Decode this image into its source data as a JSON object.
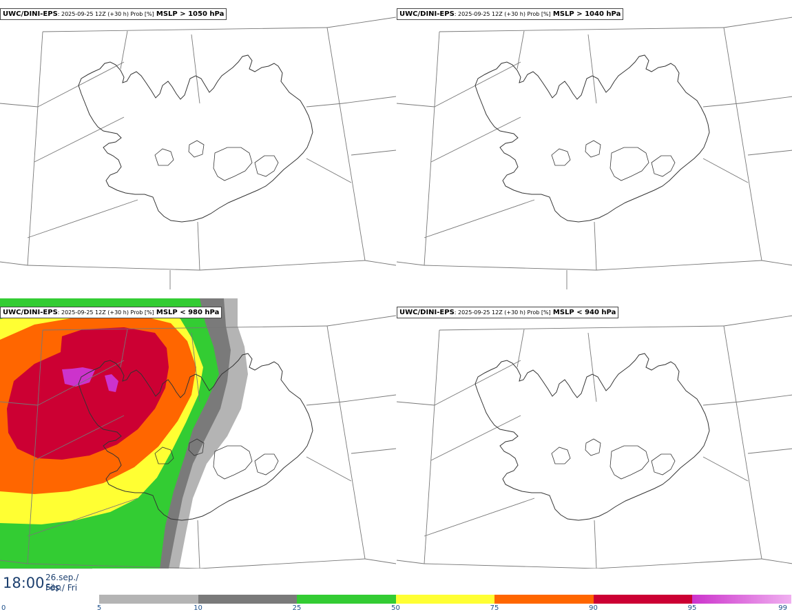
{
  "panels": [
    {
      "model": "UWC/DINI-EPS",
      "run": ": 2025-09-25 12Z (+30 h) Prob [%]",
      "threshold": "MSLP > 1050 hPa",
      "shaded": false
    },
    {
      "model": "UWC/DINI-EPS",
      "run": ": 2025-09-25 12Z (+30 h) Prob [%]",
      "threshold": "MSLP > 1040 hPa",
      "shaded": false
    },
    {
      "model": "UWC/DINI-EPS",
      "run": ": 2025-09-25 12Z (+30 h) Prob [%]",
      "threshold": "MSLP < 980 hPa",
      "shaded": true
    },
    {
      "model": "UWC/DINI-EPS",
      "run": ": 2025-09-25 12Z (+30 h) Prob [%]",
      "threshold": "MSLP < 940 hPa",
      "shaded": false
    }
  ],
  "valid_time": {
    "time": "18:00",
    "date_line1": "26.sep./ Sep",
    "date_line2": "Fös./ Fri"
  },
  "colorbar": {
    "ticks": [
      "0",
      "5",
      "10",
      "25",
      "50",
      "75",
      "90",
      "95",
      "99"
    ],
    "colors": [
      "#ffffff",
      "#b4b4b4",
      "#7a7a7a",
      "#33cc33",
      "#ffff33",
      "#ff6600",
      "#cc0033",
      "#cc33cc",
      "#f0b0f0"
    ]
  },
  "colors": {
    "land_outline": "#333333",
    "grid": "#777777",
    "prob_5": "#b4b4b4",
    "prob_10": "#7a7a7a",
    "prob_25": "#33cc33",
    "prob_50": "#ffff33",
    "prob_75": "#ff6600",
    "prob_90": "#cc0033",
    "prob_95": "#cc33cc"
  }
}
